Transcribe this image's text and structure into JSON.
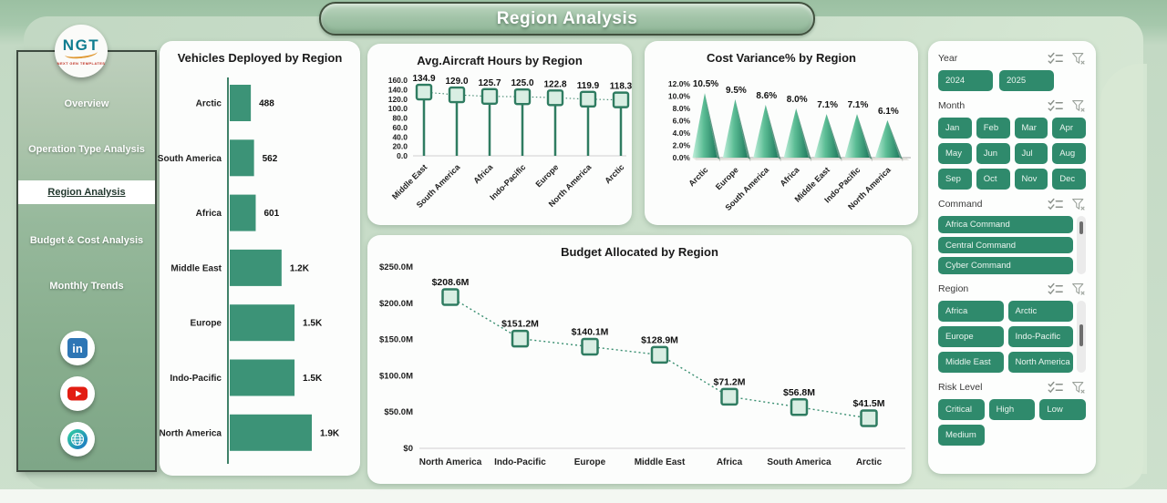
{
  "app": {
    "title": "Region Analysis"
  },
  "logo": {
    "text": "NGT",
    "subtext": "NEXT GEN TEMPLATES"
  },
  "sidebar": {
    "items": [
      {
        "label": "Overview",
        "active": false
      },
      {
        "label": "Operation Type Analysis",
        "active": false
      },
      {
        "label": "Region Analysis",
        "active": true
      },
      {
        "label": "Budget & Cost Analysis",
        "active": false
      },
      {
        "label": "Monthly Trends",
        "active": false
      }
    ]
  },
  "social": [
    {
      "name": "linkedin"
    },
    {
      "name": "youtube"
    },
    {
      "name": "website"
    }
  ],
  "filters": [
    {
      "id": "year",
      "label": "Year",
      "layout": "row",
      "options": [
        "2024",
        "2025"
      ]
    },
    {
      "id": "month",
      "label": "Month",
      "layout": "grid4",
      "options": [
        "Jan",
        "Feb",
        "Mar",
        "Apr",
        "May",
        "Jun",
        "Jul",
        "Aug",
        "Sep",
        "Oct",
        "Nov",
        "Dec"
      ]
    },
    {
      "id": "command",
      "label": "Command",
      "layout": "list",
      "scrollbar": true,
      "options": [
        "Africa Command",
        "Central Command",
        "Cyber Command"
      ]
    },
    {
      "id": "region",
      "label": "Region",
      "layout": "grid2",
      "scrollbar": true,
      "options": [
        "Africa",
        "Arctic",
        "Europe",
        "Indo-Pacific",
        "Middle East",
        "North America"
      ]
    },
    {
      "id": "risk",
      "label": "Risk Level",
      "layout": "grid3",
      "options": [
        "Critical",
        "High",
        "Low",
        "Medium"
      ]
    }
  ],
  "colors": {
    "accent": "#2f8a6c",
    "bar": "#3c9377",
    "marker_fill": "#d9eee3",
    "marker_stroke": "#2f7c61",
    "pyramid_light": "#c2f0dc",
    "pyramid_mid": "#5cbd95",
    "pyramid_dark": "#1f7b5e",
    "title_text": "#ffffff"
  },
  "chart_data": [
    {
      "type": "bar",
      "orientation": "horizontal",
      "title": "Vehicles Deployed by Region",
      "categories": [
        "Arctic",
        "South America",
        "Africa",
        "Middle East",
        "Europe",
        "Indo-Pacific",
        "North America"
      ],
      "values": [
        488,
        562,
        601,
        1200,
        1500,
        1500,
        1900
      ],
      "value_labels": [
        "488",
        "562",
        "601",
        "1.2K",
        "1.5K",
        "1.5K",
        "1.9K"
      ],
      "xlim": [
        0,
        1900
      ],
      "grid": false,
      "legend": false
    },
    {
      "type": "line",
      "style": "lollipop",
      "title": "Avg.Aircraft Hours by Region",
      "categories": [
        "Middle East",
        "South America",
        "Africa",
        "Indo-Pacific",
        "Europe",
        "North America",
        "Arctic"
      ],
      "values": [
        134.9,
        129.0,
        125.7,
        125.0,
        122.8,
        119.9,
        118.3
      ],
      "value_labels": [
        "134.9",
        "129.0",
        "125.7",
        "125.0",
        "122.8",
        "119.9",
        "118.3"
      ],
      "ylim": [
        0,
        160
      ],
      "ytick_values": [
        0,
        20,
        40,
        60,
        80,
        100,
        120,
        140,
        160
      ],
      "ytick_labels": [
        "0.0",
        "20.0",
        "40.0",
        "60.0",
        "80.0",
        "100.0",
        "120.0",
        "140.0",
        "160.0"
      ],
      "grid": false,
      "legend": false
    },
    {
      "type": "area",
      "style": "pyramid",
      "title": "Cost Variance% by Region",
      "categories": [
        "Arctic",
        "Europe",
        "South America",
        "Africa",
        "Middle East",
        "Indo-Pacific",
        "North America"
      ],
      "values": [
        10.5,
        9.5,
        8.6,
        8.0,
        7.1,
        7.1,
        6.1
      ],
      "value_labels": [
        "10.5%",
        "9.5%",
        "8.6%",
        "8.0%",
        "7.1%",
        "7.1%",
        "6.1%"
      ],
      "ylim": [
        0,
        12
      ],
      "ytick_values": [
        0,
        2,
        4,
        6,
        8,
        10,
        12
      ],
      "ytick_labels": [
        "0.0%",
        "2.0%",
        "4.0%",
        "6.0%",
        "8.0%",
        "10.0%",
        "12.0%"
      ],
      "grid": false,
      "legend": false
    },
    {
      "type": "line",
      "style": "dotted-square-markers",
      "title": "Budget Allocated by Region",
      "categories": [
        "North America",
        "Indo-Pacific",
        "Europe",
        "Middle East",
        "Africa",
        "South America",
        "Arctic"
      ],
      "values": [
        208.6,
        151.2,
        140.1,
        128.9,
        71.2,
        56.8,
        41.5
      ],
      "value_labels": [
        "$208.6M",
        "$151.2M",
        "$140.1M",
        "$128.9M",
        "$71.2M",
        "$56.8M",
        "$41.5M"
      ],
      "ylim": [
        0,
        250
      ],
      "ytick_values": [
        0,
        50,
        100,
        150,
        200,
        250
      ],
      "ytick_labels": [
        "$0",
        "$50.0M",
        "$100.0M",
        "$150.0M",
        "$200.0M",
        "$250.0M"
      ],
      "grid": false,
      "legend": false
    }
  ]
}
